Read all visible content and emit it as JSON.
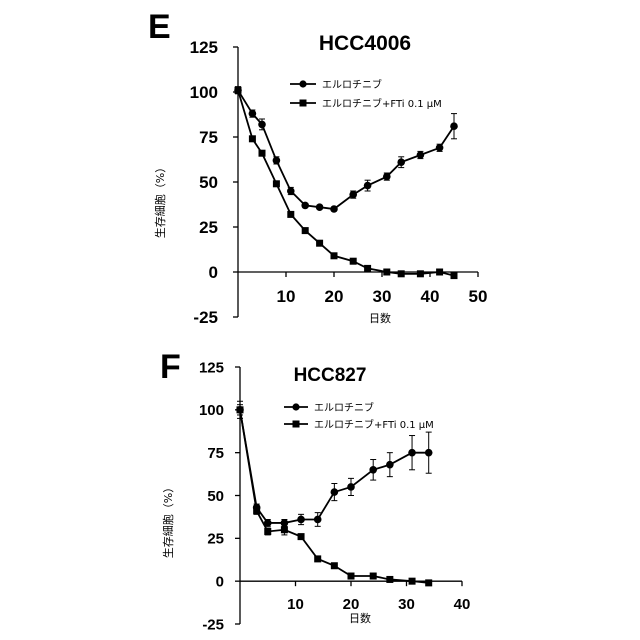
{
  "chart_data": [
    {
      "panel": "E",
      "type": "line",
      "title": "HCC4006",
      "xlabel": "日数",
      "ylabel": "生存細胞（%）",
      "xlim": [
        0,
        50
      ],
      "ylim": [
        -25,
        125
      ],
      "xticks": [
        10,
        20,
        30,
        40,
        50
      ],
      "yticks": [
        125,
        100,
        75,
        50,
        25,
        0,
        -25
      ],
      "legend": "top-right",
      "series": [
        {
          "name": "エルロチニブ",
          "marker": "circle",
          "x": [
            0,
            3,
            5,
            8,
            11,
            14,
            17,
            20,
            24,
            27,
            31,
            34,
            38,
            42,
            45
          ],
          "y": [
            101,
            88,
            82,
            62,
            45,
            37,
            36,
            35,
            43,
            48,
            53,
            61,
            65,
            69,
            81
          ],
          "err": [
            2,
            2,
            3,
            2,
            2,
            1,
            1,
            1,
            2,
            3,
            2,
            3,
            2,
            2,
            7
          ]
        },
        {
          "name": "エルロチニブ+FTi 0.1 μM",
          "marker": "square",
          "x": [
            0,
            3,
            5,
            8,
            11,
            14,
            17,
            20,
            24,
            27,
            31,
            34,
            38,
            42,
            45
          ],
          "y": [
            101,
            74,
            66,
            49,
            32,
            23,
            16,
            9,
            6,
            2,
            0,
            -1,
            -1,
            0,
            -2
          ],
          "err": [
            1,
            1,
            1,
            1,
            1,
            1,
            1,
            1,
            1,
            1,
            0,
            0,
            0,
            0,
            0
          ]
        }
      ]
    },
    {
      "panel": "F",
      "type": "line",
      "title": "HCC827",
      "xlabel": "日数",
      "ylabel": "生存細胞（%）",
      "xlim": [
        0,
        40
      ],
      "ylim": [
        -25,
        125
      ],
      "xticks": [
        10,
        20,
        30,
        40
      ],
      "yticks": [
        125,
        100,
        75,
        50,
        25,
        0,
        -25
      ],
      "legend": "top-right",
      "series": [
        {
          "name": "エルロチニブ",
          "marker": "circle",
          "x": [
            0,
            3,
            5,
            8,
            11,
            14,
            17,
            20,
            24,
            27,
            31,
            34
          ],
          "y": [
            100,
            43,
            34,
            34,
            36,
            36,
            52,
            55,
            65,
            68,
            75,
            75
          ],
          "err": [
            3,
            2,
            2,
            2,
            3,
            4,
            5,
            5,
            6,
            7,
            10,
            12
          ]
        },
        {
          "name": "エルロチニブ+FTi 0.1 μM",
          "marker": "square",
          "x": [
            0,
            3,
            5,
            8,
            11,
            14,
            17,
            20,
            24,
            27,
            31,
            34
          ],
          "y": [
            100,
            41,
            29,
            30,
            26,
            13,
            9,
            3,
            3,
            1,
            0,
            -1
          ],
          "err": [
            5,
            2,
            2,
            3,
            1,
            1,
            1,
            1,
            1,
            1,
            0,
            0
          ]
        }
      ]
    }
  ]
}
